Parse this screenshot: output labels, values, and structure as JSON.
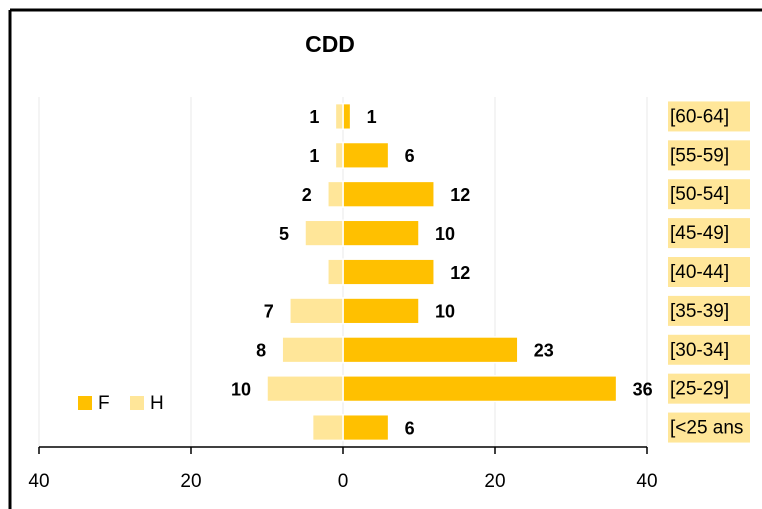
{
  "chart_data": {
    "type": "pyramid",
    "title": "CDD",
    "categories": [
      "[60-64]",
      "[55-59]",
      "[50-54]",
      "[45-49]",
      "[40-44]",
      "[35-39]",
      "[30-34]",
      "[25-29]",
      "[<25 ans"
    ],
    "series": [
      {
        "name": "F",
        "color": "#ffc000",
        "values": [
          1,
          6,
          12,
          10,
          12,
          10,
          23,
          36,
          6
        ]
      },
      {
        "name": "H",
        "color": "#ffe699",
        "values": [
          1,
          1,
          2,
          5,
          2,
          7,
          8,
          10,
          4
        ],
        "value_labels": [
          "1",
          "1",
          "2",
          "5",
          null,
          "7",
          "8",
          "10",
          null
        ]
      }
    ],
    "xlim": [
      -40,
      40
    ],
    "xticks": [
      {
        "value": -40,
        "label": "40"
      },
      {
        "value": -20,
        "label": "20"
      },
      0,
      20,
      40
    ],
    "grid": true,
    "legend": "lower left"
  }
}
